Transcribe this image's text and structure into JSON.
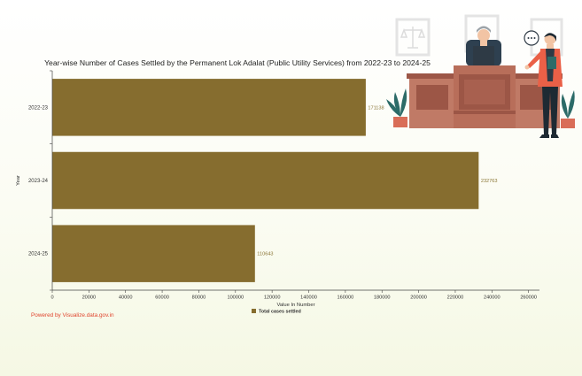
{
  "chart_data": {
    "type": "bar",
    "orientation": "horizontal",
    "title": "Year-wise Number of Cases Settled by the Permanent Lok Adalat (Public Utility Services) from 2022-23 to 2024-25",
    "categories": [
      "2022-23",
      "2023-24",
      "2024-25"
    ],
    "series": [
      {
        "name": "Total cases settled",
        "values": [
          171138,
          232763,
          110643
        ]
      }
    ],
    "data_labels": [
      "171138",
      "232763",
      "110643"
    ],
    "xlabel": "Value In Number",
    "ylabel": "Year",
    "xlim": [
      0,
      265000
    ],
    "xticks": [
      0,
      20000,
      40000,
      60000,
      80000,
      100000,
      120000,
      140000,
      160000,
      180000,
      200000,
      220000,
      240000,
      260000
    ],
    "legend_position": "bottom",
    "grid": false,
    "bar_color": "#866d2f"
  },
  "credit": "Powered by Visualize.data.gov.in",
  "colors": {
    "desk": "#c07a66",
    "desk_dark": "#9c5646",
    "skin": "#f2c4a4",
    "suit": "#2e3a45",
    "jacket": "#ea6047",
    "plant": "#2c6b68",
    "pot": "#d96d58"
  },
  "icons": [
    "judge-illustration-icon",
    "speech-bubble-icon",
    "balance-scale-icon"
  ]
}
